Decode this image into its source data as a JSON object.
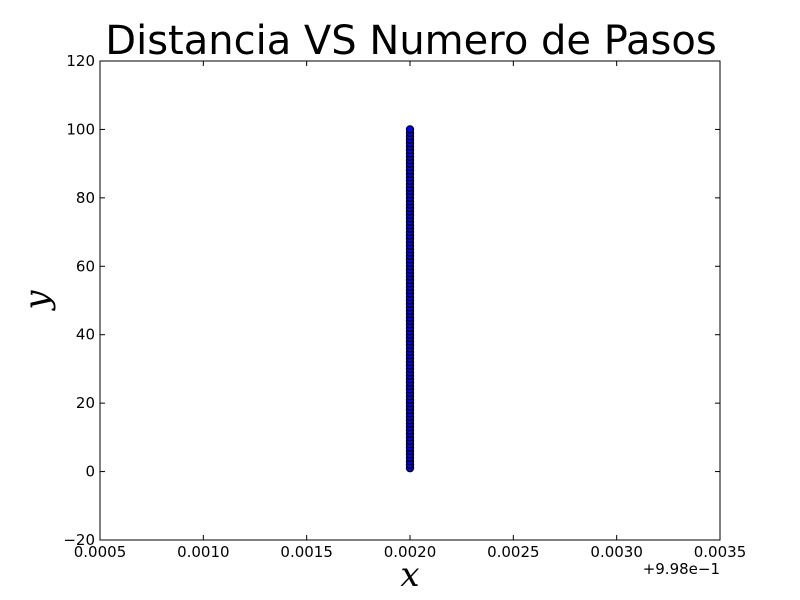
{
  "chart_data": {
    "type": "scatter",
    "title": "Distancia VS Numero de Pasos",
    "xlabel": "x",
    "ylabel": "y",
    "xlim": [
      0.0005,
      0.0035
    ],
    "ylim": [
      -20,
      120
    ],
    "x_offset_label": "+9.98e−1",
    "x_ticks": [
      0.0005,
      0.001,
      0.0015,
      0.002,
      0.0025,
      0.003,
      0.0035
    ],
    "x_tick_labels": [
      "0.0005",
      "0.0010",
      "0.0015",
      "0.0020",
      "0.0025",
      "0.0030",
      "0.0035"
    ],
    "y_ticks": [
      -20,
      0,
      20,
      40,
      60,
      80,
      100,
      120
    ],
    "y_tick_labels": [
      "−20",
      "0",
      "20",
      "40",
      "60",
      "80",
      "100",
      "120"
    ],
    "grid": false,
    "marker_color": "#0000ff",
    "marker_edge_color": "#000000",
    "series": [
      {
        "x": 0.002,
        "y_start": 1,
        "y_end": 100,
        "y_step": 1
      }
    ]
  }
}
